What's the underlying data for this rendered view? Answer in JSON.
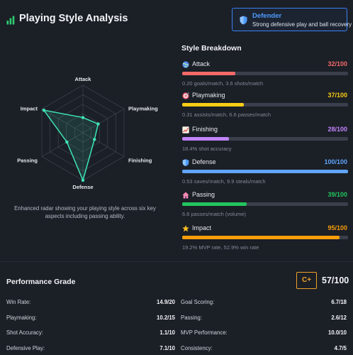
{
  "header": {
    "title": "Playing Style Analysis",
    "title_icon": "bar-chart-icon"
  },
  "role": {
    "name": "Defender",
    "description": "Strong defensive play and ball recovery",
    "icon": "shield-icon",
    "accent": "#3b82f6"
  },
  "radar": {
    "axes": [
      "Attack",
      "Playmaking",
      "Finishing",
      "Defense",
      "Passing",
      "Impact"
    ],
    "values": [
      32,
      37,
      28,
      100,
      39,
      95
    ],
    "max": 100,
    "line_color": "#3ee6b5",
    "caption": "Enhanced radar showing your playing style across six key aspects including passing ability."
  },
  "breakdown": {
    "title": "Style Breakdown",
    "stats": [
      {
        "label": "Attack",
        "value": "32/100",
        "pct": 32,
        "color": "#f26a6a",
        "icon": "globe-icon",
        "sub": "0.20 goals/match, 3.6 shots/match"
      },
      {
        "label": "Playmaking",
        "value": "37/100",
        "pct": 37,
        "color": "#facc15",
        "icon": "target-icon",
        "sub": "0.31 assists/match, 6.6 passes/match"
      },
      {
        "label": "Finishing",
        "value": "28/100",
        "pct": 28,
        "color": "#c084fc",
        "icon": "chart-up-icon",
        "sub": "18.4% shot accuracy"
      },
      {
        "label": "Defense",
        "value": "100/100",
        "pct": 100,
        "color": "#60a5fa",
        "icon": "shield-icon",
        "sub": "0.53 saves/match, 9.9 steals/match"
      },
      {
        "label": "Passing",
        "value": "39/100",
        "pct": 39,
        "color": "#22c55e",
        "icon": "house-icon",
        "sub": "6.6 passes/match (volume)"
      },
      {
        "label": "Impact",
        "value": "95/100",
        "pct": 95,
        "color": "#f59e0b",
        "icon": "star-icon",
        "sub": "19.2% MVP rate, 52.9% win rate"
      }
    ]
  },
  "performance": {
    "title": "Performance Grade",
    "grade": "C+",
    "score": "57/100",
    "grade_color": "#f0a12a",
    "left": [
      {
        "label": "Win Rate:",
        "value": "14.9/20"
      },
      {
        "label": "Playmaking:",
        "value": "10.2/15"
      },
      {
        "label": "Shot Accuracy:",
        "value": "1.1/10"
      },
      {
        "label": "Defensive Play:",
        "value": "7.1/10"
      }
    ],
    "right": [
      {
        "label": "Goal Scoring:",
        "value": "6.7/18"
      },
      {
        "label": "Passing:",
        "value": "2.6/12"
      },
      {
        "label": "MVP Performance:",
        "value": "10.0/10"
      },
      {
        "label": "Consistency:",
        "value": "4.7/5"
      }
    ]
  }
}
